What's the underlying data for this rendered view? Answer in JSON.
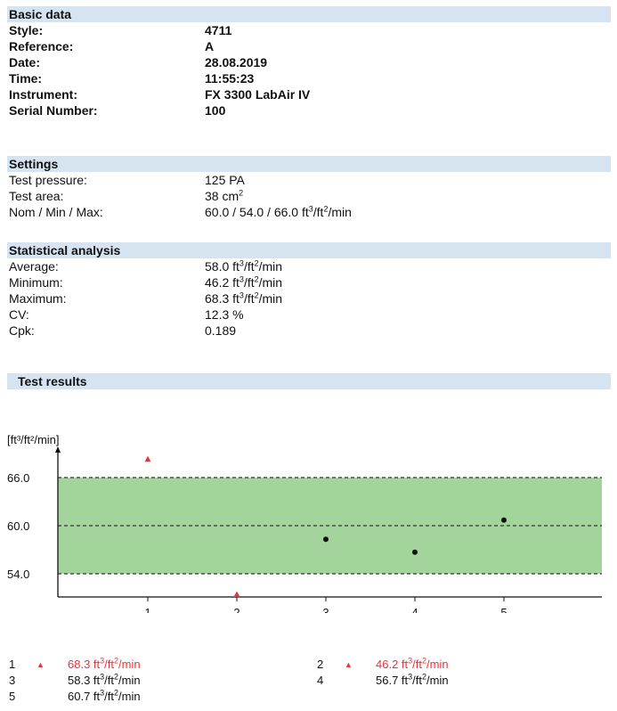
{
  "basic": {
    "title": "Basic data",
    "rows": [
      {
        "label": "Style:",
        "value": "4711"
      },
      {
        "label": "Reference:",
        "value": "A"
      },
      {
        "label": "Date:",
        "value": "28.08.2019"
      },
      {
        "label": "Time:",
        "value": "11:55:23"
      },
      {
        "label": "Instrument:",
        "value": "FX 3300 LabAir IV"
      },
      {
        "label": "Serial Number:",
        "value": "100"
      }
    ]
  },
  "settings": {
    "title": "Settings",
    "pressure_label": "Test pressure:",
    "pressure_value": "125 PA",
    "area_label": "Test area:",
    "area_value": "38 cm",
    "nom_label": "Nom / Min / Max:",
    "nom_value": "60.0 / 54.0 / 66.0 ft"
  },
  "stats": {
    "title": "Statistical analysis",
    "average_label": "Average:",
    "average_value": "58.0 ft",
    "minimum_label": "Minimum:",
    "minimum_value": "46.2 ft",
    "maximum_label": "Maximum:",
    "maximum_value": "68.3 ft",
    "cv_label": "CV:",
    "cv_value": "12.3 %",
    "cpk_label": "Cpk:",
    "cpk_value": "0.189"
  },
  "results": {
    "title": "Test results"
  },
  "units": {
    "sup3": "3",
    "sup2": "2",
    "rate_tail": "/min"
  },
  "chart_data": {
    "type": "scatter",
    "ylabel": "[ft³/ft²/min]",
    "x": [
      1,
      2,
      3,
      4,
      5
    ],
    "y": [
      68.3,
      46.2,
      58.3,
      56.7,
      60.7
    ],
    "out_of_range": [
      true,
      true,
      false,
      false,
      false
    ],
    "nominal": 60.0,
    "lower_limit": 54.0,
    "upper_limit": 66.0,
    "ytick_labels": [
      "66.0",
      "60.0",
      "54.0"
    ],
    "xtick_labels": [
      "1",
      "2",
      "3",
      "4",
      "5"
    ],
    "band_color": "#a2d49b",
    "out_color": "#e8333a",
    "in_color": "#111111"
  },
  "legend": [
    {
      "num": "1",
      "value": "68.3 ft"
    },
    {
      "num": "2",
      "value": "46.2 ft"
    },
    {
      "num": "3",
      "value": "58.3 ft"
    },
    {
      "num": "4",
      "value": "56.7 ft"
    },
    {
      "num": "5",
      "value": "60.7 ft"
    }
  ]
}
